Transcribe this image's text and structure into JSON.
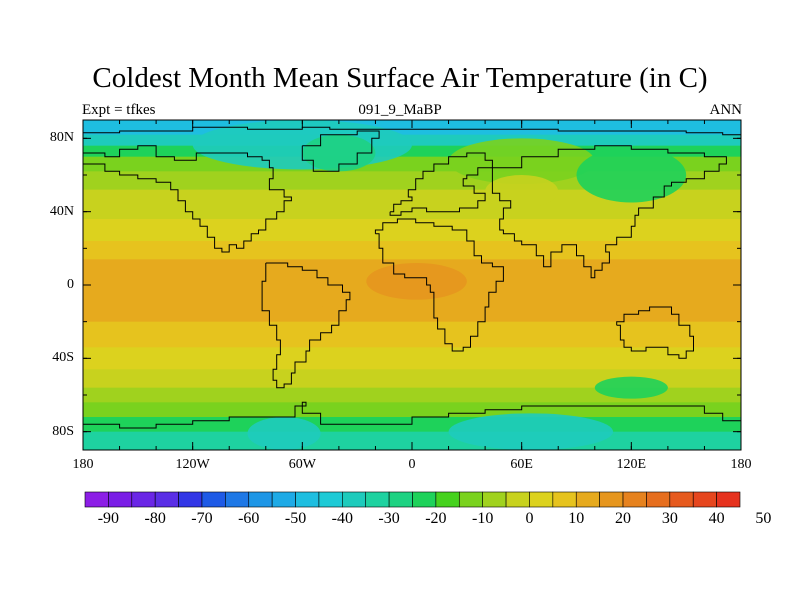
{
  "title": "Coldest Month Mean Surface Air Temperature (in C)",
  "left_label": "Expt = tfkes",
  "center_label": "091_9_MaBP",
  "right_label": "ANN",
  "lat_ticks": [
    {
      "label": "80N",
      "lat": 80
    },
    {
      "label": "40N",
      "lat": 40
    },
    {
      "label": "0",
      "lat": 0
    },
    {
      "label": "40S",
      "lat": -40
    },
    {
      "label": "80S",
      "lat": -80
    }
  ],
  "lon_ticks": [
    {
      "label": "180",
      "lon": -180
    },
    {
      "label": "120W",
      "lon": -120
    },
    {
      "label": "60W",
      "lon": -60
    },
    {
      "label": "0",
      "lon": 0
    },
    {
      "label": "60E",
      "lon": 60
    },
    {
      "label": "120E",
      "lon": 120
    },
    {
      "label": "180",
      "lon": 180
    }
  ],
  "colorbar": {
    "labels": [
      "-90",
      "-80",
      "-70",
      "-60",
      "-50",
      "-40",
      "-30",
      "-20",
      "-10",
      "0",
      "10",
      "20",
      "30",
      "40",
      "50"
    ],
    "colors": [
      "#8c1ee6",
      "#7a1ee6",
      "#6a26e6",
      "#5a2ee6",
      "#3236e6",
      "#1e5ae6",
      "#1e78e6",
      "#1e96e6",
      "#1eaae6",
      "#1ebee0",
      "#1ecad6",
      "#1ecbbc",
      "#1ed2a0",
      "#1ed282",
      "#1ed25a",
      "#46d21e",
      "#7ad21e",
      "#a0d21e",
      "#c8d21e",
      "#dcd21e",
      "#e6c31e",
      "#e6aa1e",
      "#e6961e",
      "#e6821e",
      "#e66e1e",
      "#e65a1e",
      "#e6461e",
      "#e6321e"
    ]
  },
  "map": {
    "lat_range": [
      -90,
      90
    ],
    "lon_range": [
      -180,
      180
    ],
    "bands": [
      {
        "lat": 90,
        "color": "#1ebee0"
      },
      {
        "lat": 82,
        "color": "#1ecbbc"
      },
      {
        "lat": 76,
        "color": "#1ed25a"
      },
      {
        "lat": 70,
        "color": "#7ad21e"
      },
      {
        "lat": 62,
        "color": "#a0d21e"
      },
      {
        "lat": 52,
        "color": "#c8d21e"
      },
      {
        "lat": 36,
        "color": "#dcd21e"
      },
      {
        "lat": 24,
        "color": "#e6c31e"
      },
      {
        "lat": 14,
        "color": "#e6aa1e"
      },
      {
        "lat": -12,
        "color": "#e6aa1e"
      },
      {
        "lat": -20,
        "color": "#e6c31e"
      },
      {
        "lat": -34,
        "color": "#dcd21e"
      },
      {
        "lat": -46,
        "color": "#c8d21e"
      },
      {
        "lat": -56,
        "color": "#a0d21e"
      },
      {
        "lat": -64,
        "color": "#7ad21e"
      },
      {
        "lat": -72,
        "color": "#1ed25a"
      },
      {
        "lat": -80,
        "color": "#1ed2a0"
      },
      {
        "lat": -90,
        "color": "#1ecbbc"
      }
    ],
    "overlays": [
      {
        "lon": [
          -120,
          0
        ],
        "lat": [
          63,
          90
        ],
        "color": "#1ecbbc"
      },
      {
        "lon": [
          -60,
          -20
        ],
        "lat": [
          62,
          82
        ],
        "color": "#1ed282"
      },
      {
        "lon": [
          20,
          100
        ],
        "lat": [
          55,
          80
        ],
        "color": "#7ad21e"
      },
      {
        "lon": [
          40,
          80
        ],
        "lat": [
          42,
          60
        ],
        "color": "#c8d21e"
      },
      {
        "lon": [
          90,
          150
        ],
        "lat": [
          45,
          75
        ],
        "color": "#1ed25a"
      },
      {
        "lon": [
          -25,
          30
        ],
        "lat": [
          -8,
          12
        ],
        "color": "#e6961e"
      },
      {
        "lon": [
          -72,
          -45
        ],
        "lat": [
          -14,
          2
        ],
        "color": "#e6aa1e"
      },
      {
        "lon": [
          100,
          140
        ],
        "lat": [
          -62,
          -50
        ],
        "color": "#1ed25a"
      },
      {
        "lon": [
          -90,
          -50
        ],
        "lat": [
          -90,
          -72
        ],
        "color": "#1ecbbc"
      },
      {
        "lon": [
          20,
          110
        ],
        "lat": [
          -90,
          -70
        ],
        "color": "#1ecbbc"
      }
    ],
    "coasts": [
      [
        [
          -180,
          83
        ],
        [
          -160,
          84
        ],
        [
          -120,
          86
        ],
        [
          -90,
          85
        ],
        [
          -60,
          86
        ],
        [
          -45,
          85
        ],
        [
          -20,
          85
        ],
        [
          10,
          85
        ],
        [
          40,
          85
        ],
        [
          80,
          84
        ],
        [
          120,
          84
        ],
        [
          150,
          83
        ],
        [
          170,
          82
        ],
        [
          180,
          82
        ]
      ],
      [
        [
          -180,
          72
        ],
        [
          -168,
          70
        ],
        [
          -160,
          74
        ],
        [
          -150,
          76
        ],
        [
          -140,
          70
        ],
        [
          -130,
          68
        ],
        [
          -118,
          72
        ],
        [
          -100,
          72
        ],
        [
          -90,
          70
        ],
        [
          -82,
          68
        ],
        [
          -78,
          64
        ],
        [
          -76,
          58
        ],
        [
          -78,
          52
        ],
        [
          -70,
          48
        ],
        [
          -66,
          46
        ],
        [
          -70,
          40
        ],
        [
          -74,
          36
        ],
        [
          -80,
          30
        ],
        [
          -84,
          28
        ],
        [
          -88,
          24
        ],
        [
          -92,
          20
        ],
        [
          -96,
          22
        ],
        [
          -100,
          18
        ],
        [
          -104,
          20
        ],
        [
          -108,
          26
        ],
        [
          -112,
          32
        ],
        [
          -116,
          36
        ],
        [
          -120,
          40
        ],
        [
          -124,
          46
        ],
        [
          -128,
          52
        ],
        [
          -132,
          56
        ],
        [
          -140,
          58
        ],
        [
          -150,
          60
        ],
        [
          -160,
          62
        ],
        [
          -168,
          66
        ],
        [
          -180,
          66
        ]
      ],
      [
        [
          -80,
          12
        ],
        [
          -74,
          12
        ],
        [
          -68,
          10
        ],
        [
          -60,
          8
        ],
        [
          -52,
          4
        ],
        [
          -46,
          0
        ],
        [
          -38,
          -4
        ],
        [
          -34,
          -8
        ],
        [
          -36,
          -14
        ],
        [
          -40,
          -22
        ],
        [
          -44,
          -26
        ],
        [
          -50,
          -30
        ],
        [
          -56,
          -36
        ],
        [
          -58,
          -42
        ],
        [
          -64,
          -48
        ],
        [
          -66,
          -54
        ],
        [
          -70,
          -56
        ],
        [
          -74,
          -52
        ],
        [
          -76,
          -46
        ],
        [
          -74,
          -38
        ],
        [
          -72,
          -30
        ],
        [
          -74,
          -22
        ],
        [
          -78,
          -14
        ],
        [
          -82,
          -6
        ],
        [
          -82,
          2
        ],
        [
          -80,
          12
        ]
      ],
      [
        [
          -20,
          28
        ],
        [
          -18,
          20
        ],
        [
          -16,
          12
        ],
        [
          -10,
          6
        ],
        [
          -4,
          4
        ],
        [
          4,
          4
        ],
        [
          8,
          0
        ],
        [
          10,
          -4
        ],
        [
          12,
          -10
        ],
        [
          12,
          -18
        ],
        [
          14,
          -24
        ],
        [
          18,
          -32
        ],
        [
          22,
          -36
        ],
        [
          28,
          -34
        ],
        [
          32,
          -28
        ],
        [
          36,
          -20
        ],
        [
          40,
          -12
        ],
        [
          42,
          -4
        ],
        [
          46,
          2
        ],
        [
          50,
          10
        ],
        [
          44,
          12
        ],
        [
          38,
          16
        ],
        [
          34,
          24
        ],
        [
          30,
          30
        ],
        [
          22,
          32
        ],
        [
          12,
          34
        ],
        [
          2,
          36
        ],
        [
          -8,
          34
        ],
        [
          -16,
          30
        ],
        [
          -20,
          28
        ]
      ],
      [
        [
          -12,
          40
        ],
        [
          -10,
          44
        ],
        [
          -6,
          46
        ],
        [
          0,
          48
        ],
        [
          -2,
          52
        ],
        [
          2,
          58
        ],
        [
          6,
          62
        ],
        [
          12,
          66
        ],
        [
          20,
          70
        ],
        [
          30,
          72
        ],
        [
          40,
          68
        ],
        [
          44,
          64
        ],
        [
          36,
          60
        ],
        [
          30,
          58
        ],
        [
          28,
          54
        ],
        [
          34,
          50
        ],
        [
          40,
          46
        ],
        [
          36,
          42
        ],
        [
          26,
          40
        ],
        [
          16,
          40
        ],
        [
          8,
          42
        ],
        [
          0,
          40
        ],
        [
          -6,
          38
        ],
        [
          -12,
          40
        ]
      ],
      [
        [
          44,
          64
        ],
        [
          60,
          70
        ],
        [
          80,
          74
        ],
        [
          100,
          76
        ],
        [
          120,
          74
        ],
        [
          140,
          72
        ],
        [
          160,
          70
        ],
        [
          172,
          66
        ],
        [
          168,
          62
        ],
        [
          160,
          58
        ],
        [
          150,
          56
        ],
        [
          142,
          54
        ],
        [
          138,
          48
        ],
        [
          132,
          42
        ],
        [
          124,
          38
        ],
        [
          122,
          32
        ],
        [
          120,
          26
        ],
        [
          112,
          22
        ],
        [
          106,
          18
        ],
        [
          108,
          12
        ],
        [
          104,
          8
        ],
        [
          100,
          4
        ],
        [
          98,
          10
        ],
        [
          94,
          16
        ],
        [
          90,
          22
        ],
        [
          82,
          18
        ],
        [
          76,
          10
        ],
        [
          72,
          16
        ],
        [
          68,
          22
        ],
        [
          60,
          24
        ],
        [
          56,
          28
        ],
        [
          50,
          30
        ],
        [
          48,
          36
        ],
        [
          50,
          42
        ],
        [
          54,
          46
        ],
        [
          48,
          50
        ],
        [
          44,
          56
        ],
        [
          44,
          64
        ]
      ],
      [
        [
          112,
          -22
        ],
        [
          114,
          -30
        ],
        [
          116,
          -34
        ],
        [
          120,
          -36
        ],
        [
          128,
          -34
        ],
        [
          134,
          -34
        ],
        [
          140,
          -38
        ],
        [
          146,
          -40
        ],
        [
          150,
          -36
        ],
        [
          154,
          -28
        ],
        [
          152,
          -22
        ],
        [
          146,
          -16
        ],
        [
          142,
          -12
        ],
        [
          136,
          -12
        ],
        [
          130,
          -14
        ],
        [
          124,
          -16
        ],
        [
          116,
          -20
        ],
        [
          112,
          -22
        ]
      ],
      [
        [
          -180,
          -76
        ],
        [
          -160,
          -78
        ],
        [
          -140,
          -76
        ],
        [
          -120,
          -74
        ],
        [
          -100,
          -72
        ],
        [
          -80,
          -72
        ],
        [
          -64,
          -66
        ],
        [
          -58,
          -64
        ],
        [
          -60,
          -70
        ],
        [
          -50,
          -76
        ],
        [
          -30,
          -76
        ],
        [
          0,
          -72
        ],
        [
          20,
          -70
        ],
        [
          40,
          -68
        ],
        [
          60,
          -66
        ],
        [
          80,
          -66
        ],
        [
          100,
          -66
        ],
        [
          120,
          -66
        ],
        [
          140,
          -66
        ],
        [
          160,
          -70
        ],
        [
          170,
          -74
        ],
        [
          180,
          -76
        ]
      ],
      [
        [
          -60,
          76
        ],
        [
          -50,
          82
        ],
        [
          -30,
          84
        ],
        [
          -18,
          80
        ],
        [
          -22,
          72
        ],
        [
          -30,
          66
        ],
        [
          -40,
          62
        ],
        [
          -48,
          62
        ],
        [
          -54,
          68
        ],
        [
          -60,
          76
        ]
      ]
    ]
  }
}
